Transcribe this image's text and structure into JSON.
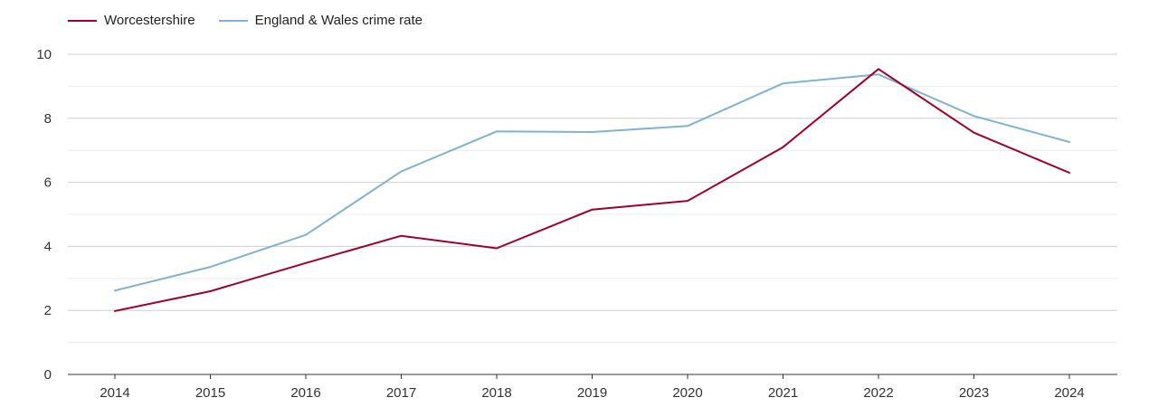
{
  "chart_data": {
    "type": "line",
    "x": [
      "2014",
      "2015",
      "2016",
      "2017",
      "2018",
      "2019",
      "2020",
      "2021",
      "2022",
      "2023",
      "2024"
    ],
    "ylim": [
      0,
      10
    ],
    "yticks": [
      0,
      2,
      4,
      6,
      8,
      10
    ],
    "grid": true,
    "legend_position": "top-left",
    "series": [
      {
        "name": "Worcestershire",
        "color": "#a0002a",
        "values": [
          1.98,
          2.6,
          3.48,
          4.33,
          3.94,
          5.15,
          5.42,
          7.1,
          9.54,
          7.55,
          6.3
        ]
      },
      {
        "name": "England & Wales crime rate",
        "color": "#7fb3d3",
        "values": [
          2.62,
          3.36,
          4.36,
          6.34,
          7.59,
          7.57,
          7.76,
          9.09,
          9.37,
          8.07,
          7.26
        ]
      }
    ]
  }
}
